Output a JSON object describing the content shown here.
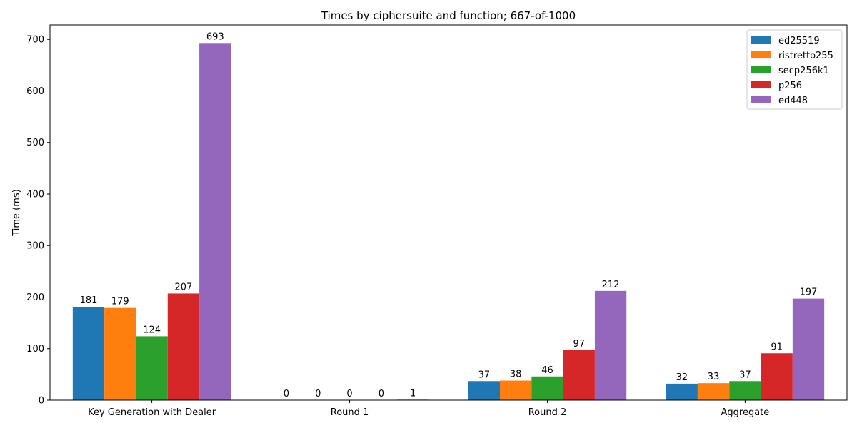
{
  "chart_data": {
    "type": "bar",
    "title": "Times by ciphersuite and function; 667-of-1000",
    "xlabel": "",
    "ylabel": "Time (ms)",
    "categories": [
      "Key Generation with Dealer",
      "Round 1",
      "Round 2",
      "Aggregate"
    ],
    "series": [
      {
        "name": "ed25519",
        "color": "#1f77b4",
        "values": [
          181,
          0,
          37,
          32
        ]
      },
      {
        "name": "ristretto255",
        "color": "#ff7f0e",
        "values": [
          179,
          0,
          38,
          33
        ]
      },
      {
        "name": "secp256k1",
        "color": "#2ca02c",
        "values": [
          124,
          0,
          46,
          37
        ]
      },
      {
        "name": "p256",
        "color": "#d62728",
        "values": [
          207,
          0,
          97,
          91
        ]
      },
      {
        "name": "ed448",
        "color": "#9467bd",
        "values": [
          693,
          1,
          212,
          197
        ]
      }
    ],
    "ylim": [
      0,
      728
    ],
    "yticks": [
      0,
      100,
      200,
      300,
      400,
      500,
      600,
      700
    ],
    "grid": false,
    "legend_position": "top-right"
  }
}
